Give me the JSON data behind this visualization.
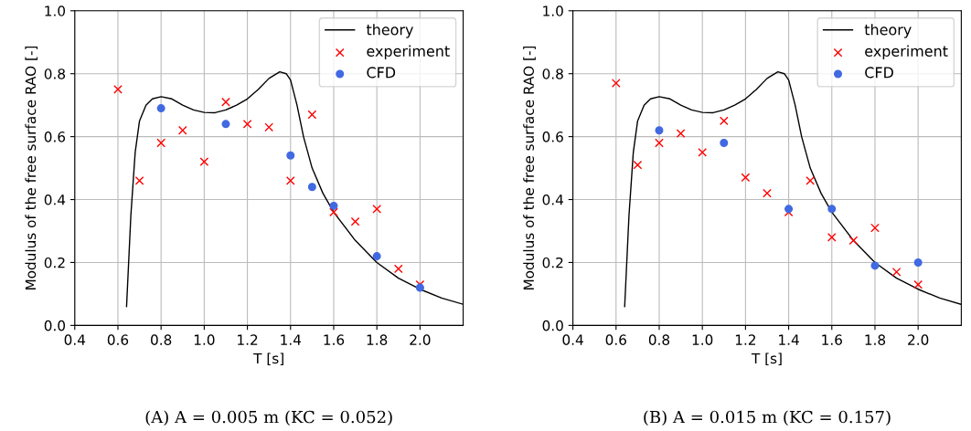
{
  "chart_data": [
    {
      "type": "scatter",
      "xlabel": "T [s]",
      "ylabel": "Modulus of the free surface RAO [-]",
      "xlim": [
        0.4,
        2.2
      ],
      "ylim": [
        0.0,
        1.0
      ],
      "xticks": [
        {
          "value": 0.4,
          "label": "0.4"
        },
        {
          "value": 0.6,
          "label": "0.6"
        },
        {
          "value": 0.8,
          "label": "0.8"
        },
        {
          "value": 1.0,
          "label": "1.0"
        },
        {
          "value": 1.2,
          "label": "1.2"
        },
        {
          "value": 1.4,
          "label": "1.4"
        },
        {
          "value": 1.6,
          "label": "1.6"
        },
        {
          "value": 1.8,
          "label": "1.8"
        },
        {
          "value": 2.0,
          "label": "2.0"
        }
      ],
      "yticks": [
        {
          "value": 0.0,
          "label": "0.0"
        },
        {
          "value": 0.2,
          "label": "0.2"
        },
        {
          "value": 0.4,
          "label": "0.4"
        },
        {
          "value": 0.6,
          "label": "0.6"
        },
        {
          "value": 0.8,
          "label": "0.8"
        },
        {
          "value": 1.0,
          "label": "1.0"
        }
      ],
      "grid": true,
      "legend": "top right",
      "annotations": [
        "(A) A = 0.005 m (KC = 0.052)"
      ],
      "series": [
        {
          "name": "theory",
          "type": "line",
          "color": "#000000",
          "marker": "none",
          "line_style": "solid",
          "x": [
            0.64,
            0.66,
            0.68,
            0.7,
            0.73,
            0.76,
            0.8,
            0.85,
            0.9,
            0.95,
            1.0,
            1.05,
            1.1,
            1.15,
            1.2,
            1.25,
            1.3,
            1.35,
            1.38,
            1.4,
            1.43,
            1.46,
            1.5,
            1.55,
            1.6,
            1.7,
            1.8,
            1.9,
            2.0,
            2.1,
            2.2
          ],
          "values": [
            0.06,
            0.35,
            0.55,
            0.65,
            0.7,
            0.72,
            0.727,
            0.72,
            0.7,
            0.685,
            0.677,
            0.676,
            0.685,
            0.7,
            0.72,
            0.75,
            0.785,
            0.806,
            0.8,
            0.78,
            0.7,
            0.6,
            0.5,
            0.42,
            0.36,
            0.27,
            0.2,
            0.15,
            0.115,
            0.087,
            0.067
          ]
        },
        {
          "name": "experiment",
          "color": "#ff0000",
          "marker": "cross",
          "x": [
            0.6,
            0.7,
            0.8,
            0.9,
            1.0,
            1.1,
            1.2,
            1.3,
            1.4,
            1.5,
            1.6,
            1.7,
            1.8,
            1.9,
            2.0
          ],
          "values": [
            0.75,
            0.46,
            0.58,
            0.62,
            0.52,
            0.71,
            0.64,
            0.63,
            0.46,
            0.67,
            0.36,
            0.33,
            0.37,
            0.18,
            0.13
          ]
        },
        {
          "name": "CFD",
          "color": "#4169e1",
          "marker": "circle",
          "x": [
            0.8,
            1.1,
            1.4,
            1.5,
            1.6,
            1.8,
            2.0
          ],
          "values": [
            0.69,
            0.64,
            0.54,
            0.44,
            0.38,
            0.22,
            0.12
          ]
        }
      ]
    },
    {
      "type": "scatter",
      "xlabel": "T [s]",
      "ylabel": "Modulus of the free surface RAO [-]",
      "xlim": [
        0.4,
        2.2
      ],
      "ylim": [
        0.0,
        1.0
      ],
      "xticks": [
        {
          "value": 0.4,
          "label": "0.4"
        },
        {
          "value": 0.6,
          "label": "0.6"
        },
        {
          "value": 0.8,
          "label": "0.8"
        },
        {
          "value": 1.0,
          "label": "1.0"
        },
        {
          "value": 1.2,
          "label": "1.2"
        },
        {
          "value": 1.4,
          "label": "1.4"
        },
        {
          "value": 1.6,
          "label": "1.6"
        },
        {
          "value": 1.8,
          "label": "1.8"
        },
        {
          "value": 2.0,
          "label": "2.0"
        }
      ],
      "yticks": [
        {
          "value": 0.0,
          "label": "0.0"
        },
        {
          "value": 0.2,
          "label": "0.2"
        },
        {
          "value": 0.4,
          "label": "0.4"
        },
        {
          "value": 0.6,
          "label": "0.6"
        },
        {
          "value": 0.8,
          "label": "0.8"
        },
        {
          "value": 1.0,
          "label": "1.0"
        }
      ],
      "grid": true,
      "legend": "top right",
      "annotations": [
        "(B) A = 0.015 m (KC = 0.157)"
      ],
      "series": [
        {
          "name": "theory",
          "type": "line",
          "color": "#000000",
          "marker": "none",
          "line_style": "solid",
          "x": [
            0.64,
            0.66,
            0.68,
            0.7,
            0.73,
            0.76,
            0.8,
            0.85,
            0.9,
            0.95,
            1.0,
            1.05,
            1.1,
            1.15,
            1.2,
            1.25,
            1.3,
            1.35,
            1.38,
            1.4,
            1.43,
            1.46,
            1.5,
            1.55,
            1.6,
            1.7,
            1.8,
            1.9,
            2.0,
            2.1,
            2.2
          ],
          "values": [
            0.06,
            0.35,
            0.55,
            0.65,
            0.7,
            0.72,
            0.727,
            0.72,
            0.7,
            0.685,
            0.677,
            0.676,
            0.685,
            0.7,
            0.72,
            0.75,
            0.785,
            0.806,
            0.8,
            0.78,
            0.7,
            0.6,
            0.5,
            0.42,
            0.36,
            0.27,
            0.2,
            0.15,
            0.115,
            0.087,
            0.067
          ]
        },
        {
          "name": "experiment",
          "color": "#ff0000",
          "marker": "cross",
          "x": [
            0.6,
            0.7,
            0.8,
            0.9,
            1.0,
            1.1,
            1.2,
            1.3,
            1.4,
            1.5,
            1.6,
            1.7,
            1.8,
            1.9,
            2.0
          ],
          "values": [
            0.77,
            0.51,
            0.58,
            0.61,
            0.55,
            0.65,
            0.47,
            0.42,
            0.36,
            0.46,
            0.28,
            0.27,
            0.31,
            0.17,
            0.13
          ]
        },
        {
          "name": "CFD",
          "color": "#4169e1",
          "marker": "circle",
          "x": [
            0.8,
            1.1,
            1.4,
            1.6,
            1.8,
            2.0
          ],
          "values": [
            0.62,
            0.58,
            0.37,
            0.37,
            0.19,
            0.2
          ]
        }
      ]
    }
  ]
}
